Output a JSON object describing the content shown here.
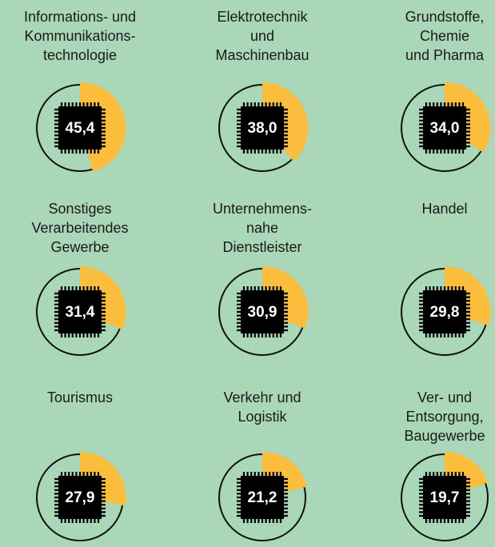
{
  "chart_data": {
    "type": "pie",
    "categories": [
      [
        "Informations- und",
        "Kommunikations-",
        "technologie"
      ],
      [
        "Elektrotechnik",
        "und",
        "Maschinenbau"
      ],
      [
        "Grundstoffe,",
        "Chemie",
        "und Pharma"
      ],
      [
        "Sonstiges",
        "Verarbeitendes",
        "Gewerbe"
      ],
      [
        "Unternehmens-",
        "nahe",
        "Dienstleister"
      ],
      [
        "Handel"
      ],
      [
        "Tourismus"
      ],
      [
        "Verkehr und",
        "Logistik"
      ],
      [
        "Ver- und",
        "Entsorgung,",
        "Baugewerbe"
      ]
    ],
    "values": [
      45.4,
      38.0,
      34.0,
      31.4,
      30.9,
      29.8,
      27.9,
      21.2,
      19.7
    ],
    "value_labels": [
      "45,4",
      "38,0",
      "34,0",
      "31,4",
      "30,9",
      "29,8",
      "27,9",
      "21,2",
      "19,7"
    ],
    "color": "#fbbd3c",
    "max": 100
  }
}
